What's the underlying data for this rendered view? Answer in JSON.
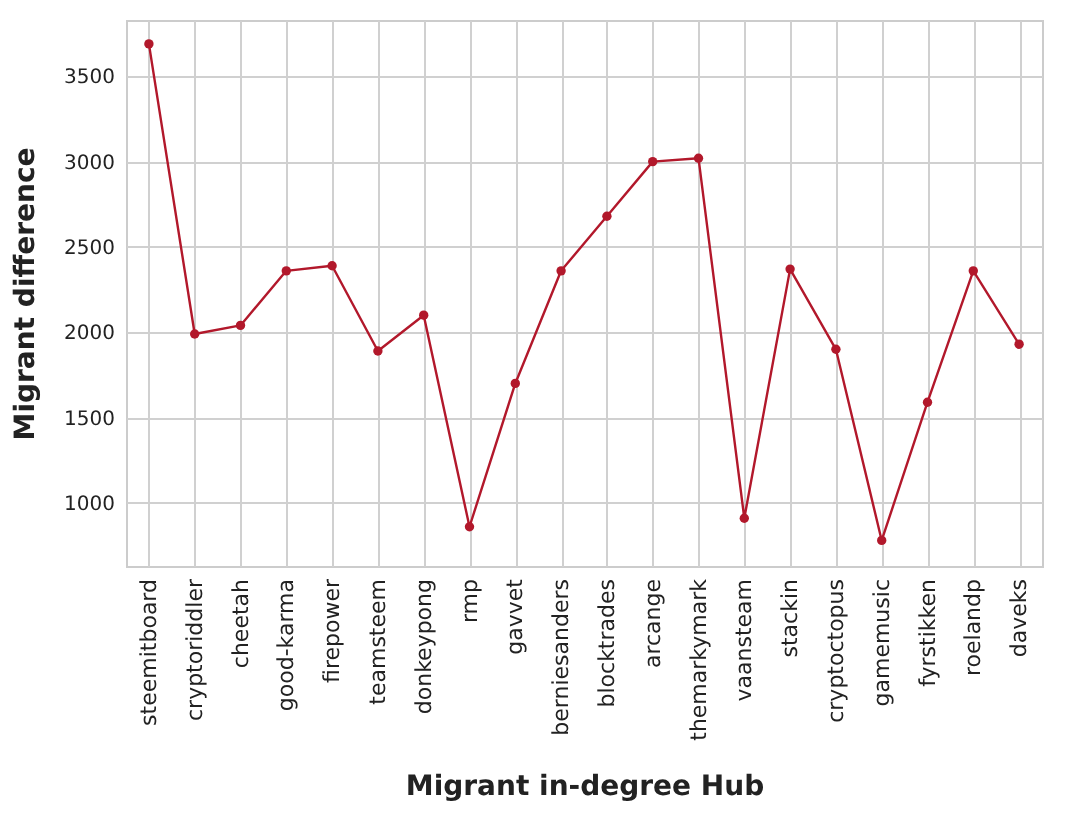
{
  "chart_data": {
    "type": "line",
    "xlabel": "Migrant in-degree Hub",
    "ylabel": "Migrant difference",
    "categories": [
      "steemitboard",
      "cryptoriddler",
      "cheetah",
      "good-karma",
      "firepower",
      "teamsteem",
      "donkeypong",
      "rmp",
      "gavvet",
      "berniesanders",
      "blocktrades",
      "arcange",
      "themarkymark",
      "vaansteam",
      "stackin",
      "cryptoctopus",
      "gamemusic",
      "fyrstikken",
      "roelandp",
      "daveks"
    ],
    "series": [
      {
        "color": "#b2182b",
        "values": [
          3690,
          1990,
          2040,
          2360,
          2390,
          1890,
          2100,
          860,
          1700,
          2360,
          2680,
          3000,
          3020,
          910,
          2370,
          1900,
          780,
          1590,
          2360,
          1930
        ]
      }
    ],
    "ylim": [
      630,
      3830
    ],
    "yticks": [
      1000,
      1500,
      2000,
      2500,
      3000,
      3500
    ],
    "grid": true,
    "marker": "circle",
    "line_style": "solid"
  }
}
